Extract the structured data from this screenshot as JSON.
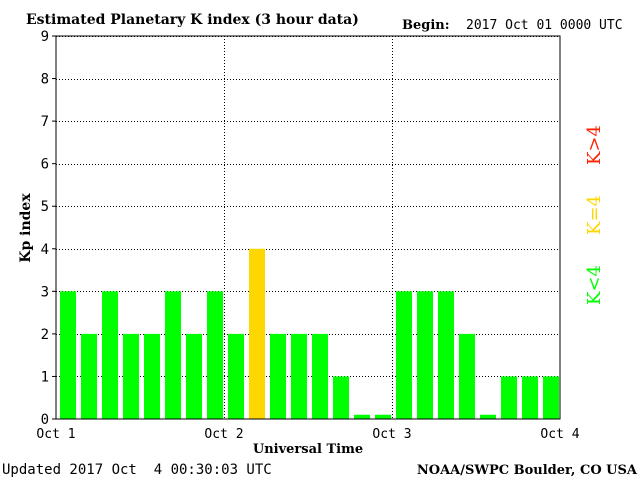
{
  "chart_data": {
    "type": "bar",
    "title": "Estimated Planetary K index (3 hour data)",
    "begin_label": "Begin:",
    "begin_value": "2017 Oct 01 0000 UTC",
    "xlabel": "Universal Time",
    "ylabel": "Kp index",
    "ylim": [
      0,
      9
    ],
    "yticks": [
      "0",
      "1",
      "2",
      "3",
      "4",
      "5",
      "6",
      "7",
      "8",
      "9"
    ],
    "xticks": [
      "Oct 1",
      "Oct 2",
      "Oct 3",
      "Oct 4"
    ],
    "grid": true,
    "values": [
      3,
      2,
      3,
      2,
      2,
      3,
      2,
      3,
      2,
      4,
      2,
      2,
      2,
      1,
      0.1,
      0.1,
      3,
      3,
      3,
      2,
      0.1,
      1,
      1,
      1
    ],
    "legend": [
      {
        "label": "K<4",
        "color": "#00ff00"
      },
      {
        "label": "K=4",
        "color": "#ffd700"
      },
      {
        "label": "K>4",
        "color": "#ff2200"
      }
    ],
    "colors": {
      "below": "#00ff00",
      "equal": "#ffd700",
      "above": "#ff2200"
    }
  },
  "footer": {
    "updated": "Updated 2017 Oct  4 00:30:03 UTC",
    "source": "NOAA/SWPC Boulder, CO USA"
  }
}
